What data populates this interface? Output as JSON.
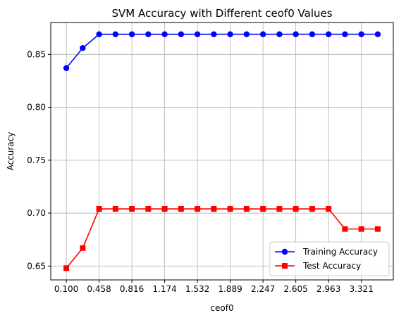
{
  "chart_data": {
    "type": "line",
    "title": "SVM Accuracy with Different ceof0 Values",
    "xlabel": "ceof0",
    "ylabel": "Accuracy",
    "x": [
      0.1,
      0.2789,
      0.4579,
      0.6368,
      0.8158,
      0.9947,
      1.1737,
      1.3526,
      1.5316,
      1.7105,
      1.8895,
      2.0684,
      2.2474,
      2.4263,
      2.6053,
      2.7842,
      2.9632,
      3.1421,
      3.3211,
      3.5
    ],
    "xticks": [
      0.1,
      0.4579,
      0.8158,
      1.1737,
      1.5316,
      1.8895,
      2.2474,
      2.6053,
      2.9632,
      3.3211
    ],
    "xtick_labels": [
      "0.100",
      "0.458",
      "0.816",
      "1.174",
      "1.532",
      "1.889",
      "2.247",
      "2.605",
      "2.963",
      "3.321"
    ],
    "yticks": [
      0.65,
      0.7,
      0.75,
      0.8,
      0.85
    ],
    "ytick_labels": [
      "0.65",
      "0.70",
      "0.75",
      "0.80",
      "0.85"
    ],
    "xlim": [
      -0.07,
      3.67
    ],
    "ylim": [
      0.6369,
      0.8801
    ],
    "grid": true,
    "legend_position": "lower-right",
    "series": [
      {
        "name": "Training Accuracy",
        "color": "#0000ff",
        "marker": "circle",
        "values": [
          0.837,
          0.856,
          0.869,
          0.869,
          0.869,
          0.869,
          0.869,
          0.869,
          0.869,
          0.869,
          0.869,
          0.869,
          0.869,
          0.869,
          0.869,
          0.869,
          0.869,
          0.869,
          0.869,
          0.869
        ]
      },
      {
        "name": "Test Accuracy",
        "color": "#ff0000",
        "marker": "square",
        "values": [
          0.648,
          0.667,
          0.704,
          0.704,
          0.704,
          0.704,
          0.704,
          0.704,
          0.704,
          0.704,
          0.704,
          0.704,
          0.704,
          0.704,
          0.704,
          0.704,
          0.704,
          0.685,
          0.685,
          0.685
        ]
      }
    ]
  }
}
